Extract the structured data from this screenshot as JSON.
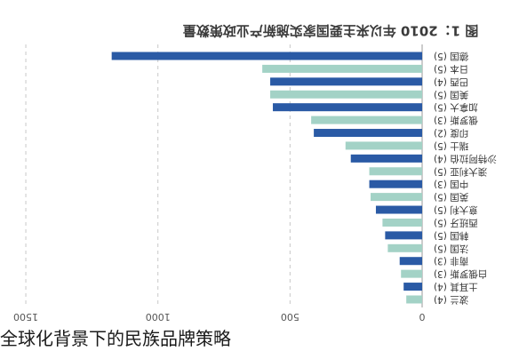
{
  "caption": "全球化背景下的民族品牌策略",
  "chart_data": {
    "type": "bar",
    "orientation": "horizontal",
    "x_axis_direction": "reversed",
    "title": "图 1：2010 年以来主要国家实施新产业政策数量",
    "categories": [
      "德国 (5)",
      "日本 (5)",
      "巴西 (4)",
      "美国 (5)",
      "加拿大 (5)",
      "俄罗斯 (3)",
      "印度 (2)",
      "瑞士 (5)",
      "沙特阿拉伯 (4)",
      "澳大利亚 (5)",
      "中国 (3)",
      "英国 (5)",
      "意大利 (5)",
      "西班牙 (5)",
      "韩国 (5)",
      "法国 (5)",
      "南非 (3)",
      "白俄罗斯 (3)",
      "土耳其 (4)",
      "波兰 (4)"
    ],
    "values": [
      1175,
      605,
      575,
      575,
      565,
      420,
      410,
      290,
      270,
      200,
      200,
      195,
      175,
      150,
      140,
      130,
      85,
      80,
      70,
      60
    ],
    "bar_colors": [
      "#2a5aa5",
      "#a3d2c6",
      "#2a5aa5",
      "#a3d2c6",
      "#2a5aa5",
      "#a3d2c6",
      "#2a5aa5",
      "#a3d2c6",
      "#2a5aa5",
      "#a3d2c6",
      "#2a5aa5",
      "#a3d2c6",
      "#2a5aa5",
      "#a3d2c6",
      "#2a5aa5",
      "#a3d2c6",
      "#2a5aa5",
      "#a3d2c6",
      "#2a5aa5",
      "#a3d2c6"
    ],
    "x_ticks": [
      0,
      500,
      1000,
      1500
    ],
    "x_tick_labels": [
      "0",
      "500",
      "1000",
      "1500"
    ],
    "xlim": [
      0,
      1500
    ],
    "grid": true,
    "grid_style": "dashed"
  }
}
